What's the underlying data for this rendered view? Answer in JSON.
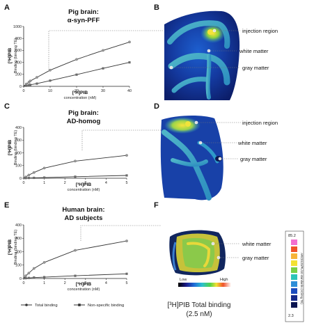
{
  "panels": {
    "A": {
      "label": "A",
      "title1": "Pig brain:",
      "title2": "α-syn-PFF"
    },
    "B": {
      "label": "B"
    },
    "C": {
      "label": "C",
      "title1": "Pig brain:",
      "title2": "AD-homog"
    },
    "D": {
      "label": "D"
    },
    "E": {
      "label": "E",
      "title1": "Human brain:",
      "title2": "AD subjects"
    },
    "F": {
      "label": "F"
    }
  },
  "axes": {
    "ylabel_top": "[³H]PIB",
    "ylabel_bottom": "Binding (binding TE)",
    "xlabel_top": "[³H]PIB",
    "xlabel_bottom": "concentration (nM)"
  },
  "annotations": {
    "B": [
      "injection region",
      "white matter",
      "gray matter"
    ],
    "D": [
      "injection region",
      "white matter",
      "gray matter"
    ],
    "F": [
      "white matter",
      "gray matter"
    ]
  },
  "scale_labels": {
    "low": "Low",
    "high": "High"
  },
  "colorbar": {
    "max": "85.2",
    "min": "2.3",
    "label": "ARC0123/PL/10 standards (nCi/mg TE)"
  },
  "bottom_caption": {
    "line1": "[³H]PIB Total binding",
    "line2": "(2.5 nM)"
  },
  "legend": {
    "total": "Total binding",
    "nonspecific": "Non-specific binding"
  },
  "colors": {
    "total": "#333333",
    "nonspecific": "#333333",
    "points_total": "#9a9a9a",
    "points_nonspecific": "#6a6a6a"
  },
  "chart_data": [
    {
      "type": "scatter",
      "panel": "A",
      "x_ticks": [
        "0",
        "10",
        "20",
        "30",
        "40"
      ],
      "y_ticks": [
        "0",
        "200",
        "400",
        "600",
        "800",
        "1000"
      ],
      "xlim": [
        0,
        40
      ],
      "ylim": [
        0,
        1000
      ],
      "series": [
        {
          "name": "Total binding",
          "x": [
            1,
            2,
            2.5,
            5,
            10,
            20,
            30,
            40
          ],
          "y": [
            40,
            70,
            90,
            150,
            270,
            450,
            600,
            740
          ]
        },
        {
          "name": "Non-specific binding",
          "x": [
            1,
            2,
            2.5,
            5,
            10,
            20,
            30,
            40
          ],
          "y": [
            10,
            20,
            25,
            45,
            95,
            195,
            300,
            400
          ]
        }
      ]
    },
    {
      "type": "scatter",
      "panel": "C",
      "x_ticks": [
        "0",
        "1",
        "2",
        "3",
        "4",
        "5"
      ],
      "y_ticks": [
        "0",
        "100",
        "200",
        "300",
        "400"
      ],
      "xlim": [
        0,
        5
      ],
      "ylim": [
        0,
        400
      ],
      "series": [
        {
          "name": "Total binding",
          "x": [
            0.1,
            0.25,
            0.5,
            1,
            2.5,
            5
          ],
          "y": [
            10,
            25,
            45,
            80,
            135,
            180
          ]
        },
        {
          "name": "Non-specific binding",
          "x": [
            0.1,
            0.25,
            0.5,
            1,
            2.5,
            5
          ],
          "y": [
            1,
            2,
            3,
            5,
            12,
            22
          ]
        }
      ]
    },
    {
      "type": "scatter",
      "panel": "E",
      "x_ticks": [
        "0",
        "1",
        "2",
        "3",
        "4",
        "5"
      ],
      "y_ticks": [
        "0",
        "100",
        "200",
        "300",
        "400"
      ],
      "xlim": [
        0,
        5
      ],
      "ylim": [
        0,
        400
      ],
      "series": [
        {
          "name": "Total binding",
          "x": [
            0.1,
            0.25,
            0.5,
            1,
            2.5,
            5
          ],
          "y": [
            20,
            40,
            75,
            120,
            210,
            280
          ]
        },
        {
          "name": "Non-specific binding",
          "x": [
            0.1,
            0.25,
            0.5,
            1,
            2.5,
            5
          ],
          "y": [
            2,
            4,
            7,
            10,
            20,
            35
          ]
        }
      ]
    }
  ]
}
